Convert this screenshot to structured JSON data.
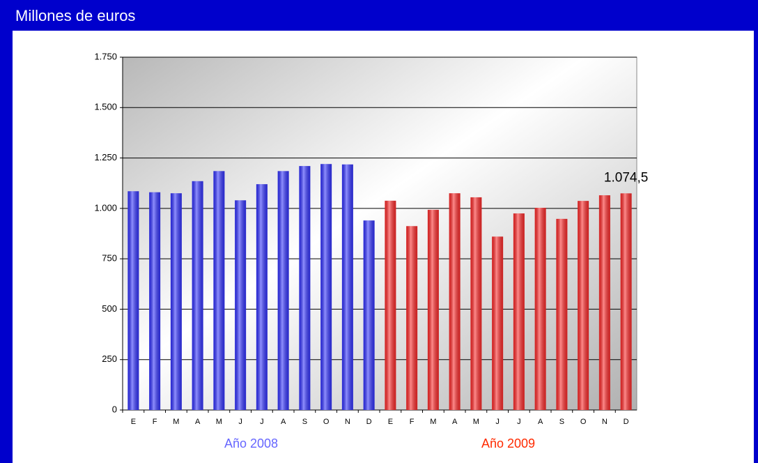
{
  "chart_data": {
    "type": "bar",
    "title": "Millones de euros",
    "categories": [
      "E",
      "F",
      "M",
      "A",
      "M",
      "J",
      "J",
      "A",
      "S",
      "O",
      "N",
      "D",
      "E",
      "F",
      "M",
      "A",
      "M",
      "J",
      "J",
      "A",
      "S",
      "O",
      "N",
      "D"
    ],
    "series": [
      {
        "name": "Año 2008",
        "color": "#3333ff",
        "label_color": "#6666ff",
        "values": [
          1085,
          1080,
          1075,
          1135,
          1185,
          1040,
          1120,
          1185,
          1210,
          1220,
          1218,
          940,
          null,
          null,
          null,
          null,
          null,
          null,
          null,
          null,
          null,
          null,
          null,
          null
        ]
      },
      {
        "name": "Año 2009",
        "color": "#ff2a2a",
        "label_color": "#ff2a00",
        "values": [
          null,
          null,
          null,
          null,
          null,
          null,
          null,
          null,
          null,
          null,
          null,
          null,
          1038,
          912,
          993,
          1075,
          1055,
          860,
          975,
          1003,
          948,
          1037,
          1065,
          1074.5
        ],
        "value_labels": [
          null,
          null,
          null,
          null,
          null,
          null,
          null,
          null,
          null,
          null,
          null,
          null,
          null,
          null,
          null,
          null,
          null,
          null,
          null,
          null,
          null,
          null,
          null,
          "1.074,5"
        ]
      }
    ],
    "ylim": [
      0,
      1750
    ],
    "yticks": [
      0,
      250,
      500,
      750,
      {
        "value": 1000,
        "label": "1.000"
      },
      {
        "value": 1250,
        "label": "1.250"
      },
      {
        "value": 1500,
        "label": "1.500"
      },
      {
        "value": 1750,
        "label": "1.750"
      }
    ],
    "grid": true
  }
}
